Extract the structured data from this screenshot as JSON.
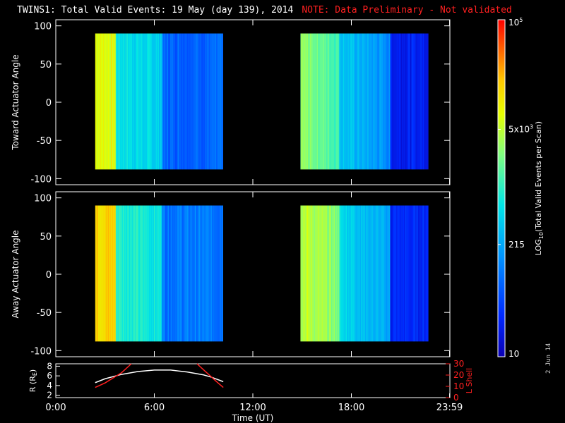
{
  "title": {
    "main": "TWINS1: Total Valid Events: 19 May (day 139), 2014",
    "note": "NOTE: Data Preliminary - Not validated"
  },
  "side_label": "2 Jun 14",
  "colors": {
    "background": "#000000",
    "axes": "#ffffff",
    "note": "#ff2020",
    "r_curve": "#ffffff",
    "lshell_curve": "#ff2020"
  },
  "chart_data": [
    {
      "type": "heatmap",
      "panel": "top",
      "ylabel": "Toward Actuator Angle",
      "xlim": [
        0,
        24
      ],
      "ylim": [
        -108,
        108
      ],
      "yticks": [
        -100,
        -50,
        0,
        50,
        100
      ],
      "x_tick_labels": [],
      "data_y_range": [
        -88,
        90
      ],
      "data_segments": [
        {
          "x_start": 2.4,
          "x_end": 10.2
        },
        {
          "x_start": 14.9,
          "x_end": 22.7
        }
      ],
      "colormap": "rainbow-log"
    },
    {
      "type": "heatmap",
      "panel": "middle",
      "ylabel": "Away Actuator Angle",
      "xlim": [
        0,
        24
      ],
      "ylim": [
        -108,
        108
      ],
      "yticks": [
        -100,
        -50,
        0,
        50,
        100
      ],
      "x_tick_labels": [],
      "data_y_range": [
        -88,
        90
      ],
      "data_segments": [
        {
          "x_start": 2.4,
          "x_end": 10.2
        },
        {
          "x_start": 14.9,
          "x_end": 22.7
        }
      ],
      "colormap": "rainbow-log"
    },
    {
      "type": "line",
      "panel": "bottom",
      "xlabel": "Time (UT)",
      "ylabel": "R (RE)",
      "ylabel_right": "L Shell",
      "xlim": [
        0,
        24
      ],
      "ylim": [
        1.5,
        8.5
      ],
      "ylim_right": [
        0,
        30
      ],
      "yticks": [
        2,
        4,
        6,
        8
      ],
      "yticks_right": [
        0,
        10,
        20,
        30
      ],
      "x_tick_labels": [
        "0:00",
        "6:00",
        "12:00",
        "18:00",
        "23:59"
      ],
      "x_tick_values": [
        0,
        6,
        12,
        18,
        23.98
      ],
      "series": [
        {
          "axis": "left",
          "x": [
            2.4,
            3,
            4,
            5,
            6,
            7,
            8,
            9,
            9.5,
            10.2
          ],
          "y": [
            4.6,
            5.4,
            6.3,
            6.9,
            7.2,
            7.2,
            6.8,
            6.2,
            5.7,
            4.8
          ]
        },
        {
          "axis": "right",
          "x": [
            2.4,
            3,
            4,
            4.6
          ],
          "y": [
            9,
            13,
            22,
            32
          ]
        },
        {
          "axis": "right",
          "x": [
            8.6,
            9.2,
            9.8,
            10.2
          ],
          "y": [
            32,
            22,
            14,
            9
          ]
        }
      ]
    },
    {
      "type": "colorbar",
      "panel": "colorbar",
      "label": "LOG10(Total Valid Events per Scan)",
      "label_base": "LOG",
      "label_sub": "10",
      "label_rest": "(Total Valid Events per Scan)",
      "scale": "log",
      "range": [
        10,
        100000
      ],
      "ticks": [
        {
          "value": 10,
          "label": "10"
        },
        {
          "value": 215,
          "label": "215"
        },
        {
          "value": 5000,
          "label": "5x10",
          "sup": "3"
        },
        {
          "value": 100000,
          "label": "10",
          "sup": "5"
        }
      ]
    }
  ]
}
